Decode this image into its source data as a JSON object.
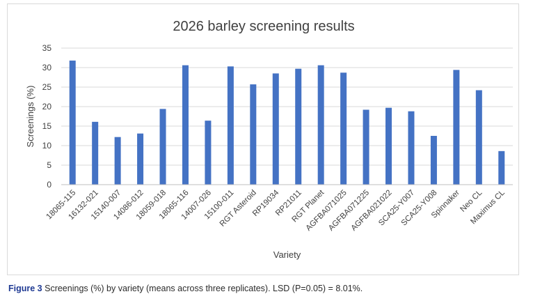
{
  "chart_data": {
    "type": "bar",
    "title": "2026 barley screening results",
    "xlabel": "Variety",
    "ylabel": "Screenings (%)",
    "ylim": [
      0,
      35
    ],
    "yticks": [
      0,
      5,
      10,
      15,
      20,
      25,
      30,
      35
    ],
    "grid": true,
    "bar_color": "#4472c4",
    "categories": [
      "18065-115",
      "16132-021",
      "15140-007",
      "14086-012",
      "18059-018",
      "18065-116",
      "14007-026",
      "15100-011",
      "RGT Asteroid",
      "RP19034",
      "RP21011",
      "RGT Planet",
      "AGFBA071025",
      "AGFBA071225",
      "AGFBA021022",
      "SCA25-Y007",
      "SCA25-Y008",
      "Spinnaker",
      "Neo CL",
      "Maximus CL"
    ],
    "values": [
      31.8,
      16.1,
      12.2,
      13.1,
      19.4,
      30.6,
      16.4,
      30.3,
      25.7,
      28.5,
      29.7,
      30.6,
      28.7,
      19.2,
      19.7,
      18.8,
      12.5,
      29.4,
      24.2,
      8.6
    ]
  },
  "caption": {
    "label": "Figure 3",
    "text": "Screenings (%) by variety (means across three replicates). LSD (P=0.05) = 8.01%."
  }
}
